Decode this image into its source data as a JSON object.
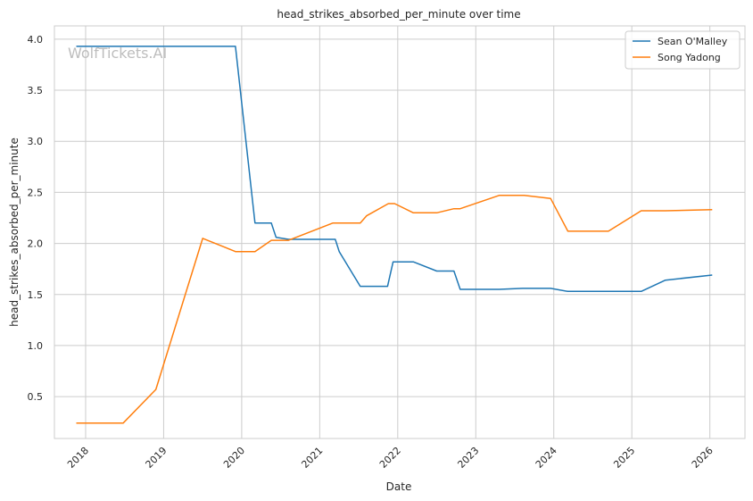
{
  "chart_data": {
    "type": "line",
    "title": "head_strikes_absorbed_per_minute over time",
    "xlabel": "Date",
    "ylabel": "head_strikes_absorbed_per_minute",
    "watermark": "WolfTickets.AI",
    "legend_position": "top-right",
    "grid": true,
    "xlim": [
      2017.6,
      2026.45
    ],
    "ylim": [
      0.09,
      4.13
    ],
    "x_ticks": [
      2018,
      2019,
      2020,
      2021,
      2022,
      2023,
      2024,
      2025,
      2026
    ],
    "x_tick_labels": [
      "2018",
      "2019",
      "2020",
      "2021",
      "2022",
      "2023",
      "2024",
      "2025",
      "2026"
    ],
    "y_ticks": [
      0.5,
      1.0,
      1.5,
      2.0,
      2.5,
      3.0,
      3.5,
      4.0
    ],
    "y_tick_labels": [
      "0.5",
      "1.0",
      "1.5",
      "2.0",
      "2.5",
      "3.0",
      "3.5",
      "4.0"
    ],
    "series": [
      {
        "name": "Sean O'Malley",
        "color": "#1f77b4",
        "points": [
          [
            2017.88,
            3.93
          ],
          [
            2019.92,
            3.93
          ],
          [
            2020.17,
            2.2
          ],
          [
            2020.38,
            2.2
          ],
          [
            2020.44,
            2.06
          ],
          [
            2020.6,
            2.04
          ],
          [
            2021.0,
            2.04
          ],
          [
            2021.2,
            2.04
          ],
          [
            2021.25,
            1.92
          ],
          [
            2021.52,
            1.58
          ],
          [
            2021.87,
            1.58
          ],
          [
            2021.94,
            1.82
          ],
          [
            2022.2,
            1.82
          ],
          [
            2022.5,
            1.73
          ],
          [
            2022.72,
            1.73
          ],
          [
            2022.8,
            1.55
          ],
          [
            2023.3,
            1.55
          ],
          [
            2023.6,
            1.56
          ],
          [
            2023.96,
            1.56
          ],
          [
            2024.18,
            1.53
          ],
          [
            2025.12,
            1.53
          ],
          [
            2025.43,
            1.64
          ],
          [
            2026.03,
            1.69
          ]
        ]
      },
      {
        "name": "Song Yadong",
        "color": "#ff7f0e",
        "points": [
          [
            2017.88,
            0.24
          ],
          [
            2018.48,
            0.24
          ],
          [
            2018.9,
            0.57
          ],
          [
            2019.5,
            2.05
          ],
          [
            2019.92,
            1.92
          ],
          [
            2020.17,
            1.92
          ],
          [
            2020.38,
            2.03
          ],
          [
            2020.6,
            2.03
          ],
          [
            2021.17,
            2.2
          ],
          [
            2021.52,
            2.2
          ],
          [
            2021.6,
            2.27
          ],
          [
            2021.88,
            2.39
          ],
          [
            2021.96,
            2.39
          ],
          [
            2022.2,
            2.3
          ],
          [
            2022.5,
            2.3
          ],
          [
            2022.72,
            2.34
          ],
          [
            2022.8,
            2.34
          ],
          [
            2023.3,
            2.47
          ],
          [
            2023.62,
            2.47
          ],
          [
            2023.96,
            2.44
          ],
          [
            2024.18,
            2.12
          ],
          [
            2024.7,
            2.12
          ],
          [
            2025.12,
            2.32
          ],
          [
            2025.43,
            2.32
          ],
          [
            2026.03,
            2.33
          ]
        ]
      }
    ]
  }
}
